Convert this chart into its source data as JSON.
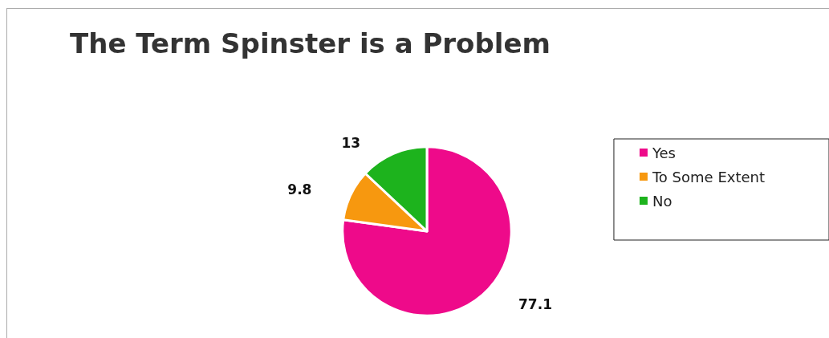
{
  "chart_data": {
    "type": "pie",
    "title": "The Term Spinster is a Problem",
    "categories": [
      "Yes",
      "To Some Extent",
      "No"
    ],
    "values": [
      77.1,
      9.8,
      13
    ],
    "colors": [
      "#ee0a8a",
      "#f7980f",
      "#1db31d"
    ],
    "data_labels": true,
    "legend": "right"
  }
}
